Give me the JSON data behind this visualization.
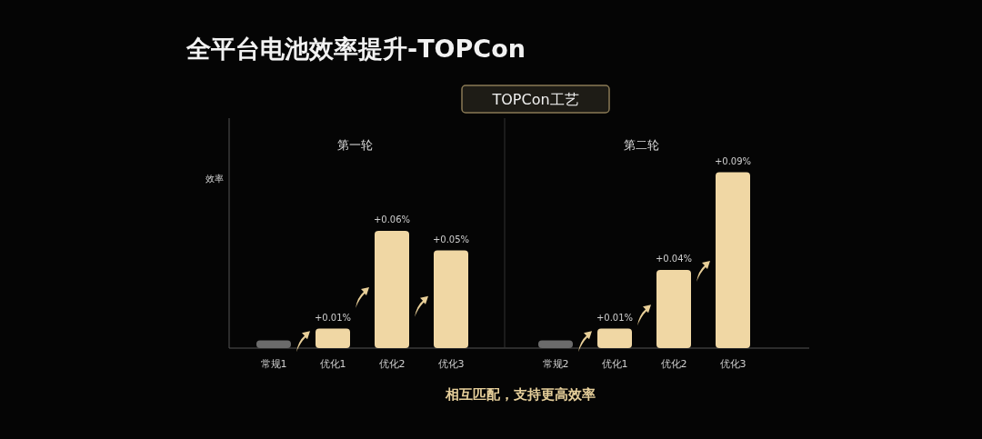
{
  "chart_data": [
    {
      "type": "bar",
      "title": "第一轮",
      "ylabel": "效率",
      "categories": [
        "常规1",
        "优化1",
        "优化2",
        "优化3"
      ],
      "values": [
        0.004,
        0.01,
        0.06,
        0.05
      ],
      "value_labels": [
        null,
        "+0.01%",
        "+0.06%",
        "+0.05%"
      ],
      "colors": [
        "#6b6b6b",
        "#f0d7a4",
        "#f0d7a4",
        "#f0d7a4"
      ],
      "annotations": [
        "全平台电池效率提升-TOPCon",
        "TOPCon工艺",
        "相互匹配，支持更高效率"
      ]
    },
    {
      "type": "bar",
      "title": "第二轮",
      "categories": [
        "常规2",
        "优化1",
        "优化2",
        "优化3"
      ],
      "values": [
        0.004,
        0.01,
        0.04,
        0.09
      ],
      "value_labels": [
        null,
        "+0.01%",
        "+0.04%",
        "+0.09%"
      ],
      "colors": [
        "#6b6b6b",
        "#f0d7a4",
        "#f0d7a4",
        "#f0d7a4"
      ]
    }
  ]
}
